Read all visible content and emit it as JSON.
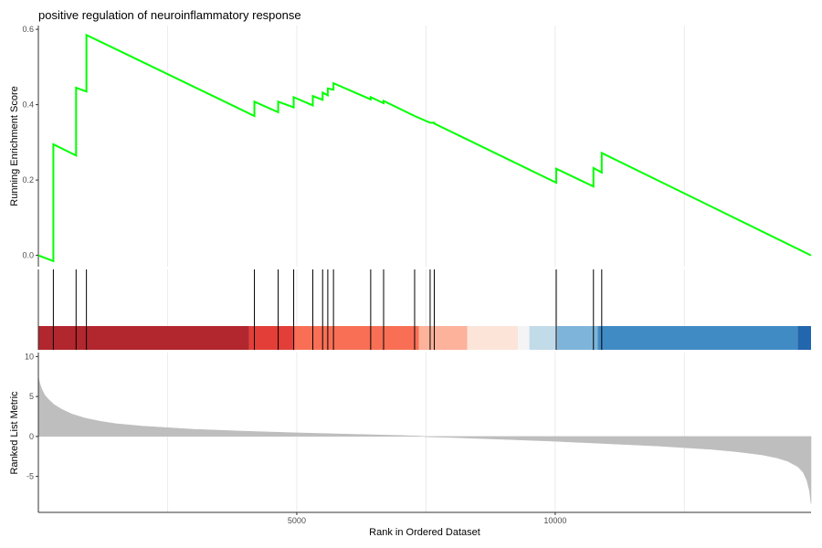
{
  "chart_data": {
    "type": "line",
    "title": "positive regulation of neuroinflammatory response",
    "xlabel": "Rank in Ordered Dataset",
    "x_ticks": [
      5000,
      10000
    ],
    "xlim": [
      0,
      14950
    ],
    "grid": true,
    "series_color": "#00ff00",
    "running_score": {
      "ylabel": "Running Enrichment Score",
      "ylim": [
        -0.03,
        0.61
      ],
      "y_ticks": [
        0.0,
        0.2,
        0.4,
        0.6
      ],
      "y_tick_labels": [
        "0.0",
        "0.2",
        "0.4",
        "0.6"
      ],
      "x": [
        0,
        290,
        290,
        730,
        730,
        930,
        930,
        4180,
        4180,
        4640,
        4640,
        4940,
        4940,
        5310,
        5310,
        5500,
        5500,
        5600,
        5600,
        5710,
        5710,
        6430,
        6430,
        6680,
        6680,
        7280,
        7280,
        7580,
        7580,
        7660,
        7660,
        10020,
        10020,
        10740,
        10740,
        10900,
        10900,
        14950
      ],
      "y": [
        0.0,
        -0.015,
        0.295,
        0.265,
        0.445,
        0.435,
        0.585,
        0.37,
        0.408,
        0.38,
        0.408,
        0.393,
        0.42,
        0.398,
        0.423,
        0.413,
        0.432,
        0.425,
        0.443,
        0.44,
        0.457,
        0.414,
        0.42,
        0.404,
        0.41,
        0.37,
        0.37,
        0.352,
        0.352,
        0.352,
        0.35,
        0.193,
        0.23,
        0.183,
        0.232,
        0.22,
        0.272,
        0.0
      ]
    },
    "gene_hits": [
      290,
      730,
      930,
      4180,
      4640,
      4940,
      5310,
      5500,
      5600,
      5710,
      6430,
      6680,
      7280,
      7580,
      7660,
      10020,
      10740,
      10900
    ],
    "color_bands": [
      {
        "x0": 0,
        "x1": 4080,
        "color": "#b2262d"
      },
      {
        "x0": 4080,
        "x1": 4960,
        "color": "#e33e38"
      },
      {
        "x0": 4960,
        "x1": 7360,
        "color": "#f86f55"
      },
      {
        "x0": 7360,
        "x1": 8300,
        "color": "#fcb29b"
      },
      {
        "x0": 8300,
        "x1": 9280,
        "color": "#fde4d9"
      },
      {
        "x0": 9280,
        "x1": 9500,
        "color": "#f4f4f6"
      },
      {
        "x0": 9500,
        "x1": 10040,
        "color": "#c2dbe9"
      },
      {
        "x0": 10040,
        "x1": 10820,
        "color": "#7eb4da"
      },
      {
        "x0": 10820,
        "x1": 14690,
        "color": "#418bc4"
      },
      {
        "x0": 14690,
        "x1": 14950,
        "color": "#2266ad"
      }
    ],
    "ranked_metric": {
      "ylabel": "Ranked List Metric",
      "ylim": [
        -9.5,
        10.5
      ],
      "y_ticks": [
        10,
        5,
        0,
        -5
      ],
      "y_tick_labels": [
        "10",
        "5",
        "0",
        "-5"
      ],
      "fill_color": "#bebebe",
      "x": [
        0,
        20,
        60,
        120,
        200,
        300,
        450,
        650,
        900,
        1200,
        1500,
        2000,
        2500,
        3000,
        4000,
        5000,
        6000,
        7000,
        7400,
        7500,
        8000,
        9000,
        10000,
        11000,
        12000,
        13000,
        13500,
        14000,
        14300,
        14500,
        14700,
        14800,
        14870,
        14920,
        14950
      ],
      "y": [
        7.5,
        6.8,
        6.0,
        5.2,
        4.6,
        4.0,
        3.4,
        2.8,
        2.3,
        1.9,
        1.6,
        1.3,
        1.1,
        0.9,
        0.65,
        0.45,
        0.28,
        0.12,
        0.03,
        -0.03,
        -0.12,
        -0.35,
        -0.6,
        -0.9,
        -1.2,
        -1.6,
        -1.9,
        -2.3,
        -2.7,
        -3.1,
        -3.8,
        -4.5,
        -5.5,
        -6.8,
        -8.4
      ]
    }
  }
}
